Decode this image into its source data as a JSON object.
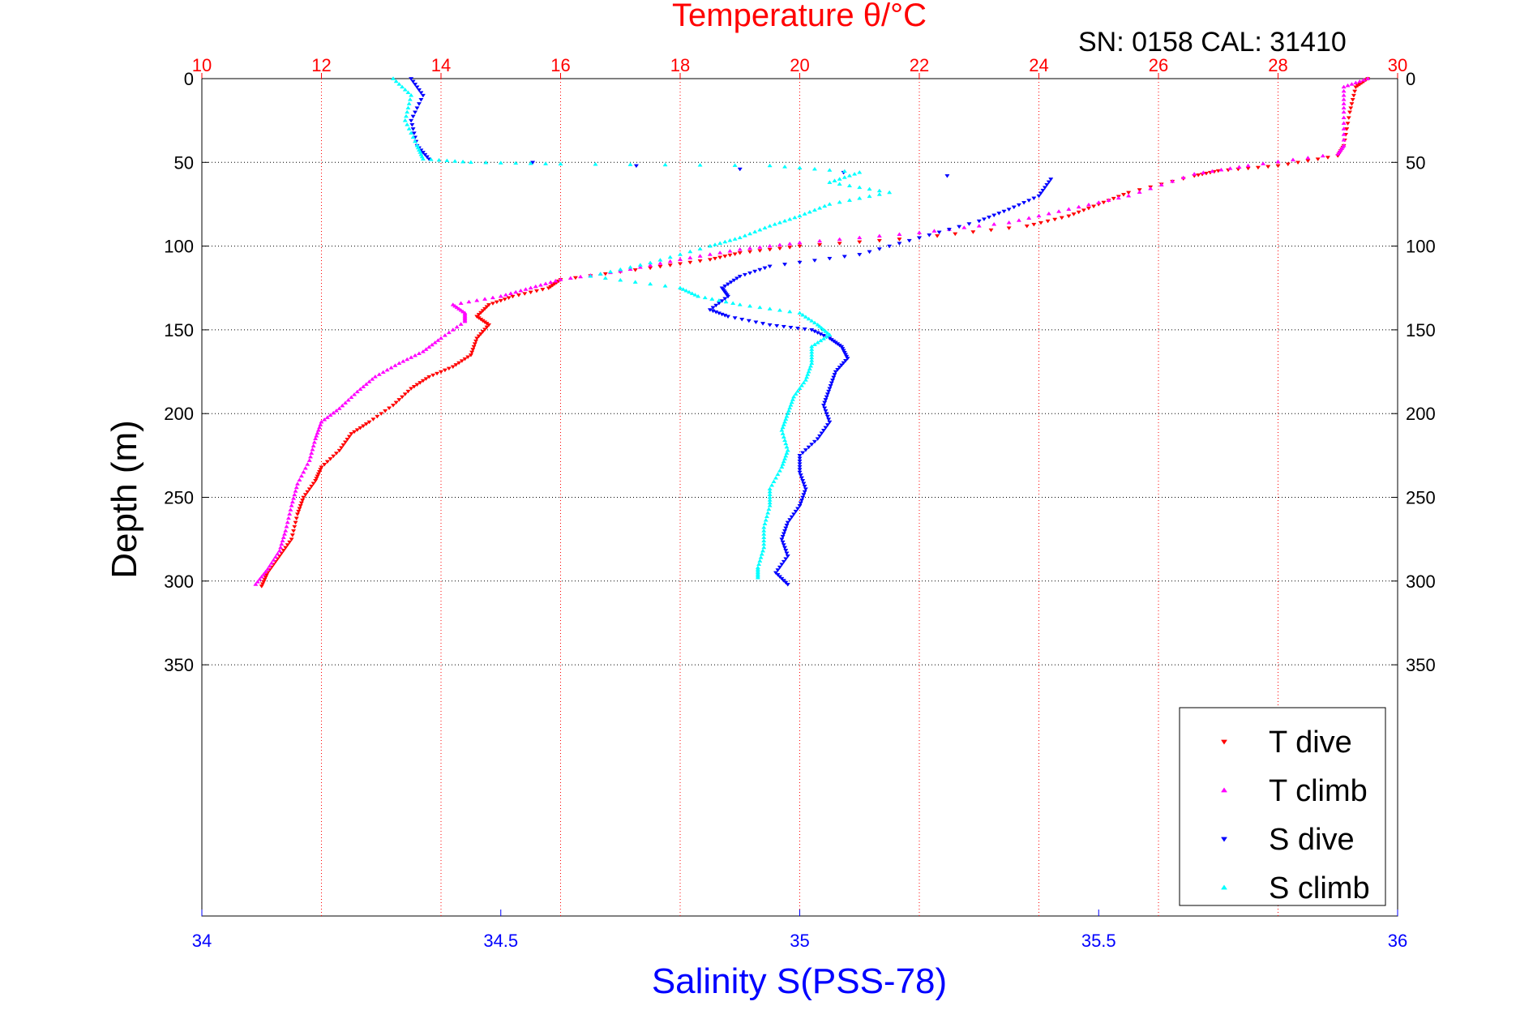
{
  "colors": {
    "temperature_axis": "#ff0000",
    "salinity_axis": "#0000ff",
    "t_dive": "#ff0000",
    "t_climb": "#ff00ff",
    "s_dive": "#0000ff",
    "s_climb": "#00ffff",
    "grid": "#000000",
    "temp_grid": "#ff0000"
  },
  "chart_data": {
    "type": "scatter",
    "title": "Temperature θ/°C",
    "subtitle": "SN: 0158  CAL: 31410",
    "xlabel": "Salinity S(PSS-78)",
    "ylabel": "Depth (m)",
    "x_top": {
      "label": "Temperature θ/°C",
      "range": [
        10,
        30
      ],
      "ticks": [
        10,
        12,
        14,
        16,
        18,
        20,
        22,
        24,
        26,
        28,
        30
      ],
      "tick_labels": [
        "10",
        "12",
        "14",
        "16",
        "18",
        "20",
        "22",
        "24",
        "26",
        "28",
        "30"
      ]
    },
    "x_bottom": {
      "label": "Salinity S(PSS-78)",
      "range": [
        34,
        36
      ],
      "ticks": [
        34,
        34.5,
        35,
        35.5,
        36
      ],
      "tick_labels": [
        "34",
        "34.5",
        "35",
        "35.5",
        "36"
      ]
    },
    "y": {
      "label": "Depth (m)",
      "range": [
        0,
        500
      ],
      "reversed": true,
      "ticks": [
        0,
        50,
        100,
        150,
        200,
        250,
        300,
        350
      ],
      "tick_labels": [
        "0",
        "50",
        "100",
        "150",
        "200",
        "250",
        "300",
        "350"
      ]
    },
    "grid": true,
    "legend_position": "bottom-right",
    "series": [
      {
        "name": "T dive",
        "axis": "temperature",
        "marker": "triangle-down",
        "points": [
          [
            29.5,
            0
          ],
          [
            29.3,
            5
          ],
          [
            29.2,
            20
          ],
          [
            29.1,
            40
          ],
          [
            29.0,
            46
          ],
          [
            28.0,
            52
          ],
          [
            27.0,
            55
          ],
          [
            26.6,
            58
          ],
          [
            25.5,
            68
          ],
          [
            25.0,
            75
          ],
          [
            24.5,
            82
          ],
          [
            23.8,
            88
          ],
          [
            22.0,
            95
          ],
          [
            20.0,
            100
          ],
          [
            19.0,
            104
          ],
          [
            18.5,
            108
          ],
          [
            17.5,
            113
          ],
          [
            16.0,
            120
          ],
          [
            15.8,
            125
          ],
          [
            15.2,
            130
          ],
          [
            14.8,
            135
          ],
          [
            14.6,
            142
          ],
          [
            14.8,
            147
          ],
          [
            14.6,
            155
          ],
          [
            14.5,
            165
          ],
          [
            14.2,
            172
          ],
          [
            13.8,
            178
          ],
          [
            13.5,
            185
          ],
          [
            13.2,
            195
          ],
          [
            12.8,
            205
          ],
          [
            12.5,
            212
          ],
          [
            12.3,
            222
          ],
          [
            12.0,
            232
          ],
          [
            11.9,
            240
          ],
          [
            11.7,
            250
          ],
          [
            11.6,
            260
          ],
          [
            11.5,
            275
          ],
          [
            11.3,
            285
          ],
          [
            11.1,
            295
          ],
          [
            11.0,
            303
          ]
        ]
      },
      {
        "name": "T climb",
        "axis": "temperature",
        "marker": "triangle-up",
        "points": [
          [
            29.5,
            0
          ],
          [
            29.1,
            5
          ],
          [
            29.1,
            20
          ],
          [
            29.1,
            40
          ],
          [
            29.0,
            45
          ],
          [
            27.5,
            52
          ],
          [
            26.6,
            57
          ],
          [
            25.5,
            70
          ],
          [
            24.5,
            78
          ],
          [
            23.5,
            86
          ],
          [
            22.0,
            92
          ],
          [
            20.0,
            98
          ],
          [
            19.0,
            102
          ],
          [
            18.0,
            108
          ],
          [
            17.0,
            115
          ],
          [
            16.0,
            120
          ],
          [
            15.5,
            125
          ],
          [
            15.0,
            130
          ],
          [
            14.2,
            135
          ],
          [
            14.4,
            140
          ],
          [
            14.4,
            145
          ],
          [
            14.0,
            155
          ],
          [
            13.7,
            163
          ],
          [
            13.3,
            170
          ],
          [
            12.9,
            178
          ],
          [
            12.6,
            187
          ],
          [
            12.3,
            197
          ],
          [
            12.0,
            205
          ],
          [
            11.9,
            215
          ],
          [
            11.8,
            228
          ],
          [
            11.6,
            242
          ],
          [
            11.5,
            255
          ],
          [
            11.4,
            270
          ],
          [
            11.3,
            282
          ],
          [
            11.1,
            293
          ],
          [
            10.9,
            302
          ]
        ]
      },
      {
        "name": "S dive",
        "axis": "salinity",
        "marker": "triangle-down",
        "points": [
          [
            34.35,
            0
          ],
          [
            34.37,
            10
          ],
          [
            34.35,
            25
          ],
          [
            34.36,
            40
          ],
          [
            34.38,
            48
          ],
          [
            35.42,
            60
          ],
          [
            35.4,
            70
          ],
          [
            35.35,
            78
          ],
          [
            35.3,
            85
          ],
          [
            35.2,
            95
          ],
          [
            35.1,
            105
          ],
          [
            34.95,
            112
          ],
          [
            34.9,
            118
          ],
          [
            34.87,
            125
          ],
          [
            34.88,
            130
          ],
          [
            34.85,
            138
          ],
          [
            34.88,
            142
          ],
          [
            34.95,
            147
          ],
          [
            35.02,
            150
          ],
          [
            35.05,
            155
          ],
          [
            35.07,
            160
          ],
          [
            35.08,
            167
          ],
          [
            35.06,
            175
          ],
          [
            35.05,
            185
          ],
          [
            35.04,
            195
          ],
          [
            35.05,
            205
          ],
          [
            35.03,
            215
          ],
          [
            35.0,
            225
          ],
          [
            35.0,
            235
          ],
          [
            35.01,
            245
          ],
          [
            35.0,
            255
          ],
          [
            34.98,
            265
          ],
          [
            34.97,
            275
          ],
          [
            34.98,
            285
          ],
          [
            34.96,
            295
          ],
          [
            34.98,
            302
          ]
        ]
      },
      {
        "name": "S climb",
        "axis": "salinity",
        "marker": "triangle-up",
        "points": [
          [
            34.32,
            0
          ],
          [
            34.35,
            10
          ],
          [
            34.34,
            25
          ],
          [
            34.36,
            40
          ],
          [
            34.37,
            48
          ],
          [
            34.45,
            50
          ],
          [
            34.6,
            51
          ],
          [
            34.95,
            52
          ],
          [
            35.1,
            56
          ],
          [
            35.05,
            62
          ],
          [
            35.15,
            68
          ],
          [
            35.05,
            75
          ],
          [
            35.0,
            82
          ],
          [
            34.95,
            88
          ],
          [
            34.9,
            95
          ],
          [
            34.85,
            100
          ],
          [
            34.75,
            110
          ],
          [
            34.65,
            118
          ],
          [
            34.8,
            125
          ],
          [
            34.83,
            130
          ],
          [
            34.9,
            135
          ],
          [
            35.0,
            140
          ],
          [
            35.03,
            147
          ],
          [
            35.05,
            153
          ],
          [
            35.02,
            160
          ],
          [
            35.02,
            170
          ],
          [
            35.01,
            180
          ],
          [
            34.99,
            190
          ],
          [
            34.98,
            200
          ],
          [
            34.97,
            210
          ],
          [
            34.98,
            222
          ],
          [
            34.97,
            232
          ],
          [
            34.95,
            245
          ],
          [
            34.95,
            255
          ],
          [
            34.94,
            268
          ],
          [
            34.94,
            280
          ],
          [
            34.93,
            292
          ],
          [
            34.93,
            298
          ]
        ]
      }
    ]
  }
}
